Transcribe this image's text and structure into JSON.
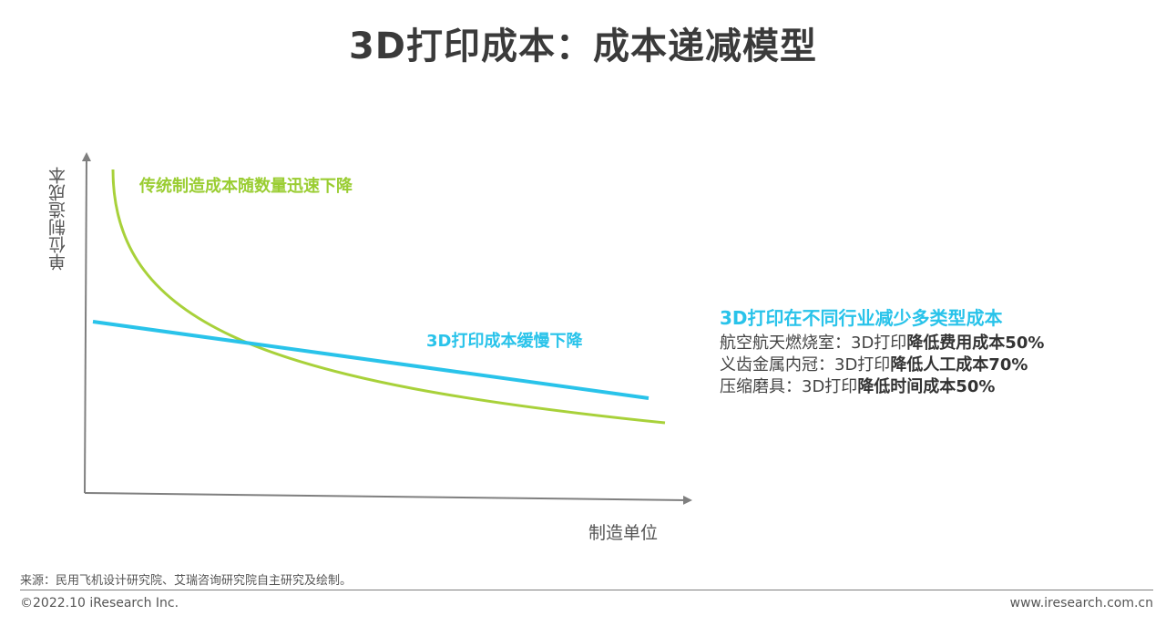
{
  "title": "3D打印成本：成本递减模型",
  "diagram": {
    "y_axis_label": "单位制造成本",
    "x_axis_label": "制造单位",
    "traditional_curve_label": "传统制造成本随数量迅速下降",
    "printing_line_label": "3D打印成本缓慢下降",
    "colors": {
      "traditional": "#a8d13a",
      "printing": "#29c3ea",
      "axis": "#7f7f7f"
    }
  },
  "panel": {
    "title": "3D打印在不同行业减少多类型成本",
    "rows": [
      {
        "prefix": "航空航天燃烧室：3D打印",
        "highlight": "降低费用成本50%"
      },
      {
        "prefix": "义齿金属内冠：3D打印",
        "highlight": "降低人工成本70%"
      },
      {
        "prefix": "压缩磨具：3D打印",
        "highlight": "降低时间成本50%"
      }
    ]
  },
  "footer": {
    "source": "来源：民用飞机设计研究院、艾瑞咨询研究院自主研究及绘制。",
    "copyright": "©2022.10 iResearch Inc.",
    "website": "www.iresearch.com.cn"
  }
}
